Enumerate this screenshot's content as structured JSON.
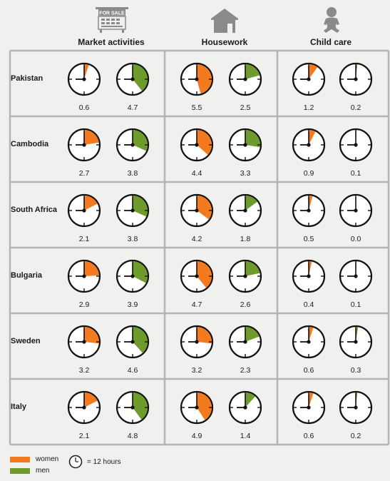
{
  "columns": [
    {
      "title": "Market activities",
      "icon": "for-sale-sign-icon",
      "sign_text": "FOR SALE"
    },
    {
      "title": "Housework",
      "icon": "house-icon"
    },
    {
      "title": "Child care",
      "icon": "baby-icon"
    }
  ],
  "legend": {
    "women": "women",
    "men": "men",
    "clock_note": "= 12 hours",
    "clock_icon": "clock-icon"
  },
  "colors": {
    "women": "#f47a20",
    "men": "#6f9a2c",
    "divider": "#b4b4b4",
    "background": "#f0f0ee"
  },
  "chart_data": {
    "type": "clock-pie",
    "unit": "hours per day (full clock = 12 hours)",
    "clock_max": 12,
    "columns": [
      "Market activities",
      "Housework",
      "Child care"
    ],
    "series": [
      {
        "name": "women",
        "color": "#f47a20"
      },
      {
        "name": "men",
        "color": "#6f9a2c"
      }
    ],
    "rows": [
      {
        "country": "Pakistan",
        "values": [
          [
            0.6,
            4.7
          ],
          [
            5.5,
            2.5
          ],
          [
            1.2,
            0.2
          ]
        ]
      },
      {
        "country": "Cambodia",
        "values": [
          [
            2.7,
            3.8
          ],
          [
            4.4,
            3.3
          ],
          [
            0.9,
            0.1
          ]
        ]
      },
      {
        "country": "South Africa",
        "values": [
          [
            2.1,
            3.8
          ],
          [
            4.2,
            1.8
          ],
          [
            0.5,
            0.0
          ]
        ]
      },
      {
        "country": "Bulgaria",
        "values": [
          [
            2.9,
            3.9
          ],
          [
            4.7,
            2.6
          ],
          [
            0.4,
            0.1
          ]
        ]
      },
      {
        "country": "Sweden",
        "values": [
          [
            3.2,
            4.6
          ],
          [
            3.2,
            2.3
          ],
          [
            0.6,
            0.3
          ]
        ]
      },
      {
        "country": "Italy",
        "values": [
          [
            2.1,
            4.8
          ],
          [
            4.9,
            1.4
          ],
          [
            0.6,
            0.2
          ]
        ]
      }
    ]
  }
}
